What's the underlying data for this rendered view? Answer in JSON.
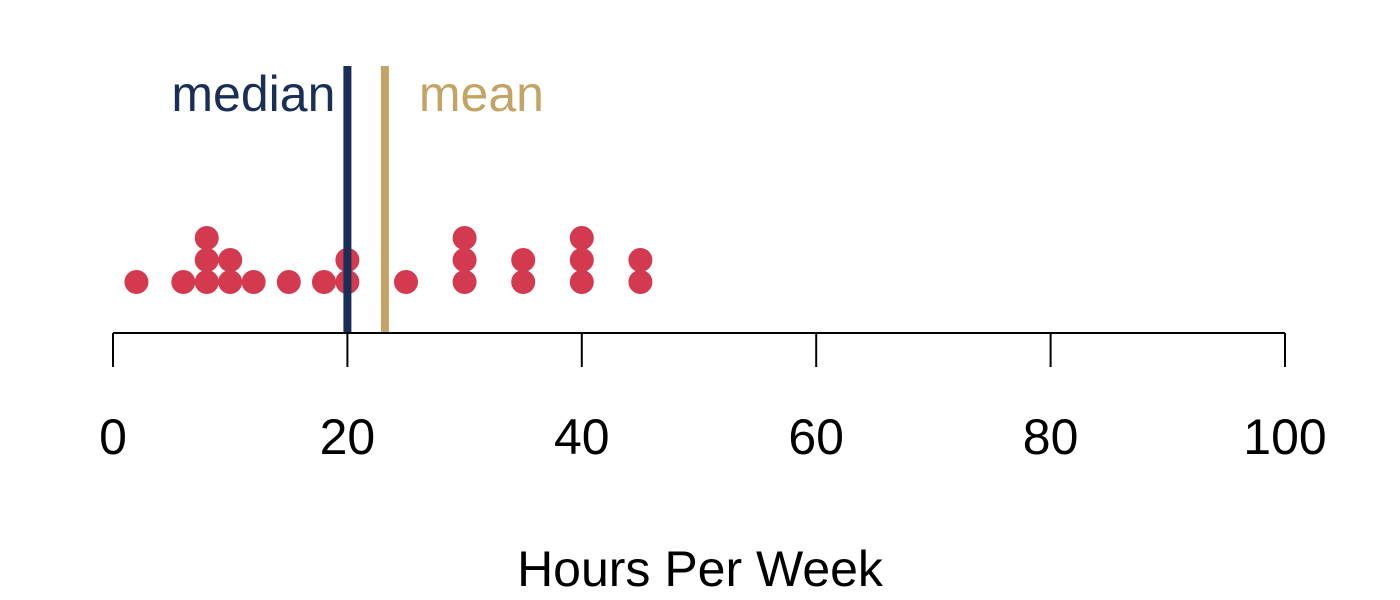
{
  "chart_data": {
    "type": "scatter",
    "subtype": "dot-plot",
    "xlabel": "Hours Per Week",
    "xlim": [
      0,
      100
    ],
    "ticks": [
      0,
      20,
      40,
      60,
      80,
      100
    ],
    "tick_labels": [
      "0",
      "20",
      "40",
      "60",
      "80",
      "100"
    ],
    "points": [
      2,
      6,
      8,
      8,
      8,
      10,
      10,
      12,
      15,
      18,
      20,
      20,
      25,
      30,
      30,
      30,
      35,
      35,
      40,
      40,
      40,
      45,
      45
    ],
    "median": 20,
    "mean": 23.2,
    "median_label": "median",
    "mean_label": "mean",
    "grid": false,
    "colors": {
      "points": "#d43a4f",
      "median": "#1a2f57",
      "mean": "#c4a464",
      "axis": "#000000"
    }
  }
}
